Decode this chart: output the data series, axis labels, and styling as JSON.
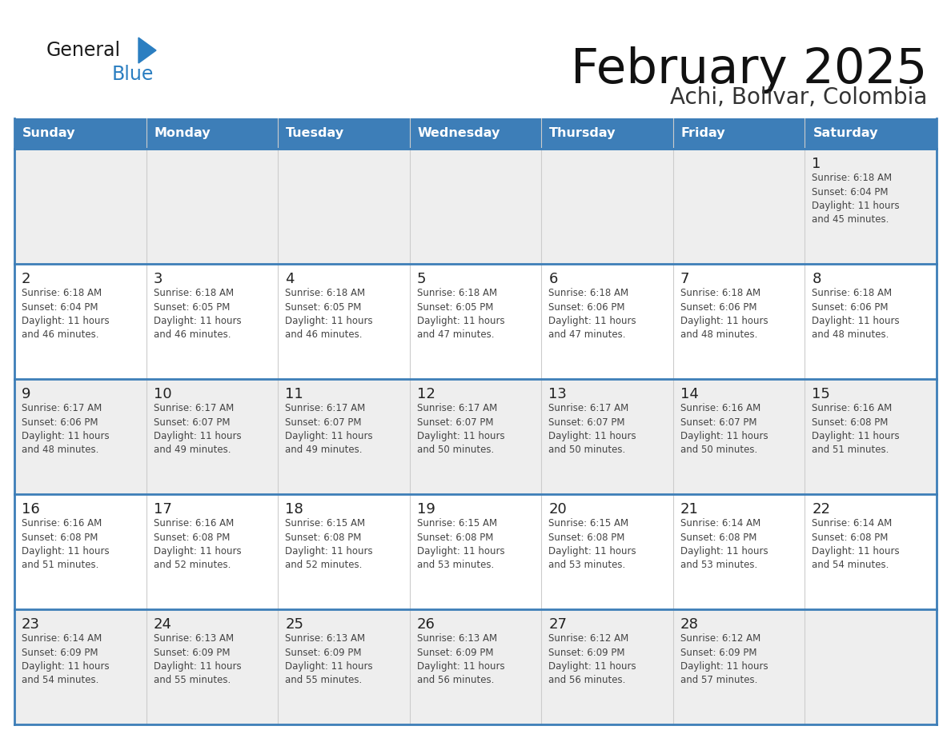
{
  "title": "February 2025",
  "subtitle": "Achi, Bolivar, Colombia",
  "days_of_week": [
    "Sunday",
    "Monday",
    "Tuesday",
    "Wednesday",
    "Thursday",
    "Friday",
    "Saturday"
  ],
  "header_bg": "#3d7eb8",
  "header_text": "#ffffff",
  "cell_bg_white": "#ffffff",
  "cell_bg_gray": "#eeeeee",
  "border_color": "#3d7eb8",
  "col_line_color": "#cccccc",
  "text_color": "#444444",
  "day_num_color": "#222222",
  "logo_general_color": "#1a1a1a",
  "logo_blue_color": "#2b7ec1",
  "calendar": [
    [
      null,
      null,
      null,
      null,
      null,
      null,
      1
    ],
    [
      2,
      3,
      4,
      5,
      6,
      7,
      8
    ],
    [
      9,
      10,
      11,
      12,
      13,
      14,
      15
    ],
    [
      16,
      17,
      18,
      19,
      20,
      21,
      22
    ],
    [
      23,
      24,
      25,
      26,
      27,
      28,
      null
    ]
  ],
  "row_bg": [
    "gray",
    "white",
    "gray",
    "white",
    "gray"
  ],
  "cell_data": {
    "1": {
      "sunrise": "6:18 AM",
      "sunset": "6:04 PM",
      "daylight_line1": "Daylight: 11 hours",
      "daylight_line2": "and 45 minutes."
    },
    "2": {
      "sunrise": "6:18 AM",
      "sunset": "6:04 PM",
      "daylight_line1": "Daylight: 11 hours",
      "daylight_line2": "and 46 minutes."
    },
    "3": {
      "sunrise": "6:18 AM",
      "sunset": "6:05 PM",
      "daylight_line1": "Daylight: 11 hours",
      "daylight_line2": "and 46 minutes."
    },
    "4": {
      "sunrise": "6:18 AM",
      "sunset": "6:05 PM",
      "daylight_line1": "Daylight: 11 hours",
      "daylight_line2": "and 46 minutes."
    },
    "5": {
      "sunrise": "6:18 AM",
      "sunset": "6:05 PM",
      "daylight_line1": "Daylight: 11 hours",
      "daylight_line2": "and 47 minutes."
    },
    "6": {
      "sunrise": "6:18 AM",
      "sunset": "6:06 PM",
      "daylight_line1": "Daylight: 11 hours",
      "daylight_line2": "and 47 minutes."
    },
    "7": {
      "sunrise": "6:18 AM",
      "sunset": "6:06 PM",
      "daylight_line1": "Daylight: 11 hours",
      "daylight_line2": "and 48 minutes."
    },
    "8": {
      "sunrise": "6:18 AM",
      "sunset": "6:06 PM",
      "daylight_line1": "Daylight: 11 hours",
      "daylight_line2": "and 48 minutes."
    },
    "9": {
      "sunrise": "6:17 AM",
      "sunset": "6:06 PM",
      "daylight_line1": "Daylight: 11 hours",
      "daylight_line2": "and 48 minutes."
    },
    "10": {
      "sunrise": "6:17 AM",
      "sunset": "6:07 PM",
      "daylight_line1": "Daylight: 11 hours",
      "daylight_line2": "and 49 minutes."
    },
    "11": {
      "sunrise": "6:17 AM",
      "sunset": "6:07 PM",
      "daylight_line1": "Daylight: 11 hours",
      "daylight_line2": "and 49 minutes."
    },
    "12": {
      "sunrise": "6:17 AM",
      "sunset": "6:07 PM",
      "daylight_line1": "Daylight: 11 hours",
      "daylight_line2": "and 50 minutes."
    },
    "13": {
      "sunrise": "6:17 AM",
      "sunset": "6:07 PM",
      "daylight_line1": "Daylight: 11 hours",
      "daylight_line2": "and 50 minutes."
    },
    "14": {
      "sunrise": "6:16 AM",
      "sunset": "6:07 PM",
      "daylight_line1": "Daylight: 11 hours",
      "daylight_line2": "and 50 minutes."
    },
    "15": {
      "sunrise": "6:16 AM",
      "sunset": "6:08 PM",
      "daylight_line1": "Daylight: 11 hours",
      "daylight_line2": "and 51 minutes."
    },
    "16": {
      "sunrise": "6:16 AM",
      "sunset": "6:08 PM",
      "daylight_line1": "Daylight: 11 hours",
      "daylight_line2": "and 51 minutes."
    },
    "17": {
      "sunrise": "6:16 AM",
      "sunset": "6:08 PM",
      "daylight_line1": "Daylight: 11 hours",
      "daylight_line2": "and 52 minutes."
    },
    "18": {
      "sunrise": "6:15 AM",
      "sunset": "6:08 PM",
      "daylight_line1": "Daylight: 11 hours",
      "daylight_line2": "and 52 minutes."
    },
    "19": {
      "sunrise": "6:15 AM",
      "sunset": "6:08 PM",
      "daylight_line1": "Daylight: 11 hours",
      "daylight_line2": "and 53 minutes."
    },
    "20": {
      "sunrise": "6:15 AM",
      "sunset": "6:08 PM",
      "daylight_line1": "Daylight: 11 hours",
      "daylight_line2": "and 53 minutes."
    },
    "21": {
      "sunrise": "6:14 AM",
      "sunset": "6:08 PM",
      "daylight_line1": "Daylight: 11 hours",
      "daylight_line2": "and 53 minutes."
    },
    "22": {
      "sunrise": "6:14 AM",
      "sunset": "6:08 PM",
      "daylight_line1": "Daylight: 11 hours",
      "daylight_line2": "and 54 minutes."
    },
    "23": {
      "sunrise": "6:14 AM",
      "sunset": "6:09 PM",
      "daylight_line1": "Daylight: 11 hours",
      "daylight_line2": "and 54 minutes."
    },
    "24": {
      "sunrise": "6:13 AM",
      "sunset": "6:09 PM",
      "daylight_line1": "Daylight: 11 hours",
      "daylight_line2": "and 55 minutes."
    },
    "25": {
      "sunrise": "6:13 AM",
      "sunset": "6:09 PM",
      "daylight_line1": "Daylight: 11 hours",
      "daylight_line2": "and 55 minutes."
    },
    "26": {
      "sunrise": "6:13 AM",
      "sunset": "6:09 PM",
      "daylight_line1": "Daylight: 11 hours",
      "daylight_line2": "and 56 minutes."
    },
    "27": {
      "sunrise": "6:12 AM",
      "sunset": "6:09 PM",
      "daylight_line1": "Daylight: 11 hours",
      "daylight_line2": "and 56 minutes."
    },
    "28": {
      "sunrise": "6:12 AM",
      "sunset": "6:09 PM",
      "daylight_line1": "Daylight: 11 hours",
      "daylight_line2": "and 57 minutes."
    }
  }
}
